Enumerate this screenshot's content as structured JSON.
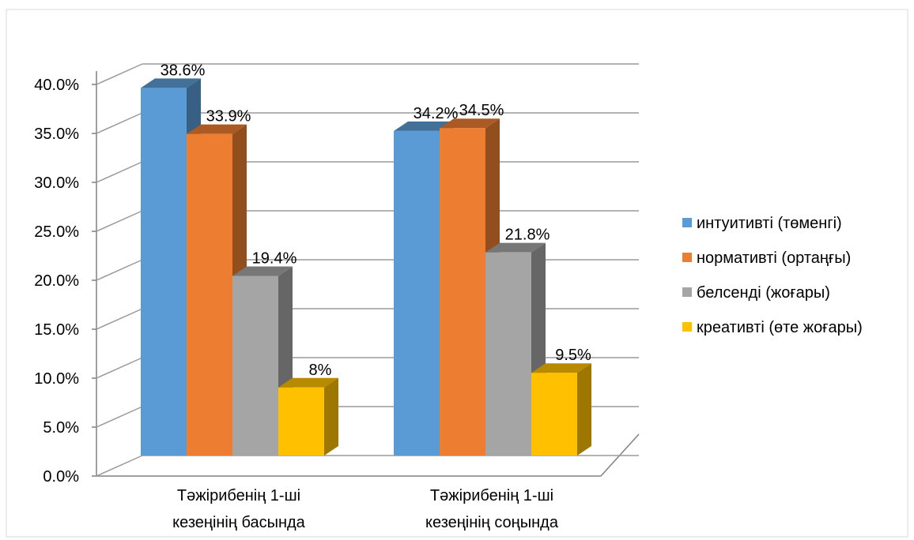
{
  "chart_data": {
    "type": "bar",
    "categories": [
      "Тәжірибенің 1-ші кезеңінің басында",
      "Тәжірибенің 1-ші кезеңінің соңында"
    ],
    "category_lines": [
      [
        "Тәжірибенің 1-ші",
        "кезеңінің басында"
      ],
      [
        "Тәжірибенің 1-ші",
        "кезеңінің соңында"
      ]
    ],
    "series": [
      {
        "name": "интуитивті (төменгі)",
        "values": [
          38.6,
          34.2
        ],
        "labels": [
          "38.6%",
          "34.2%"
        ],
        "color": "#5B9BD5"
      },
      {
        "name": "нормативті (ортаңғы)",
        "values": [
          33.9,
          34.5
        ],
        "labels": [
          "33.9%",
          "34.5%"
        ],
        "color": "#ED7D31"
      },
      {
        "name": "белсенді (жоғары)",
        "values": [
          19.4,
          21.8
        ],
        "labels": [
          "19.4%",
          "21.8%"
        ],
        "color": "#A5A5A5"
      },
      {
        "name": "креативті (өте жоғары)",
        "values": [
          8,
          9.5
        ],
        "labels": [
          "8%",
          "9.5%"
        ],
        "color": "#FFC000"
      }
    ],
    "y_ticks": [
      "0.0%",
      "5.0%",
      "10.0%",
      "15.0%",
      "20.0%",
      "25.0%",
      "30.0%",
      "35.0%",
      "40.0%"
    ],
    "ylim": [
      0,
      40
    ],
    "grid": true,
    "legend_position": "right",
    "title": "",
    "xlabel": "",
    "ylabel": ""
  }
}
